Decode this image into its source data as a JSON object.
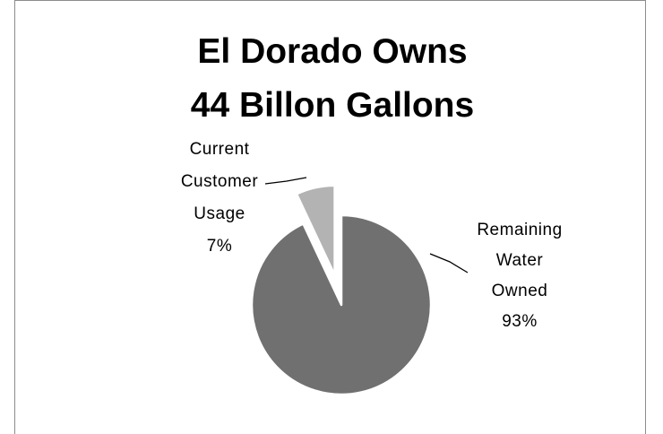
{
  "chart_data": {
    "type": "pie",
    "title_lines": [
      "El Dorado Owns",
      "44 Billon Gallons"
    ],
    "slices": [
      {
        "category": "Current Customer Usage",
        "label_lines": [
          "Current",
          "Customer",
          "Usage"
        ],
        "value": 7,
        "value_label": "7%",
        "color": "#b3b3b3",
        "exploded": true
      },
      {
        "category": "Remaining Water Owned",
        "label_lines": [
          "Remaining",
          "Water",
          "Owned"
        ],
        "value": 93,
        "value_label": "93%",
        "color": "#707070",
        "exploded": false
      }
    ],
    "legend": "none",
    "data_labels": "outside with leader lines"
  }
}
